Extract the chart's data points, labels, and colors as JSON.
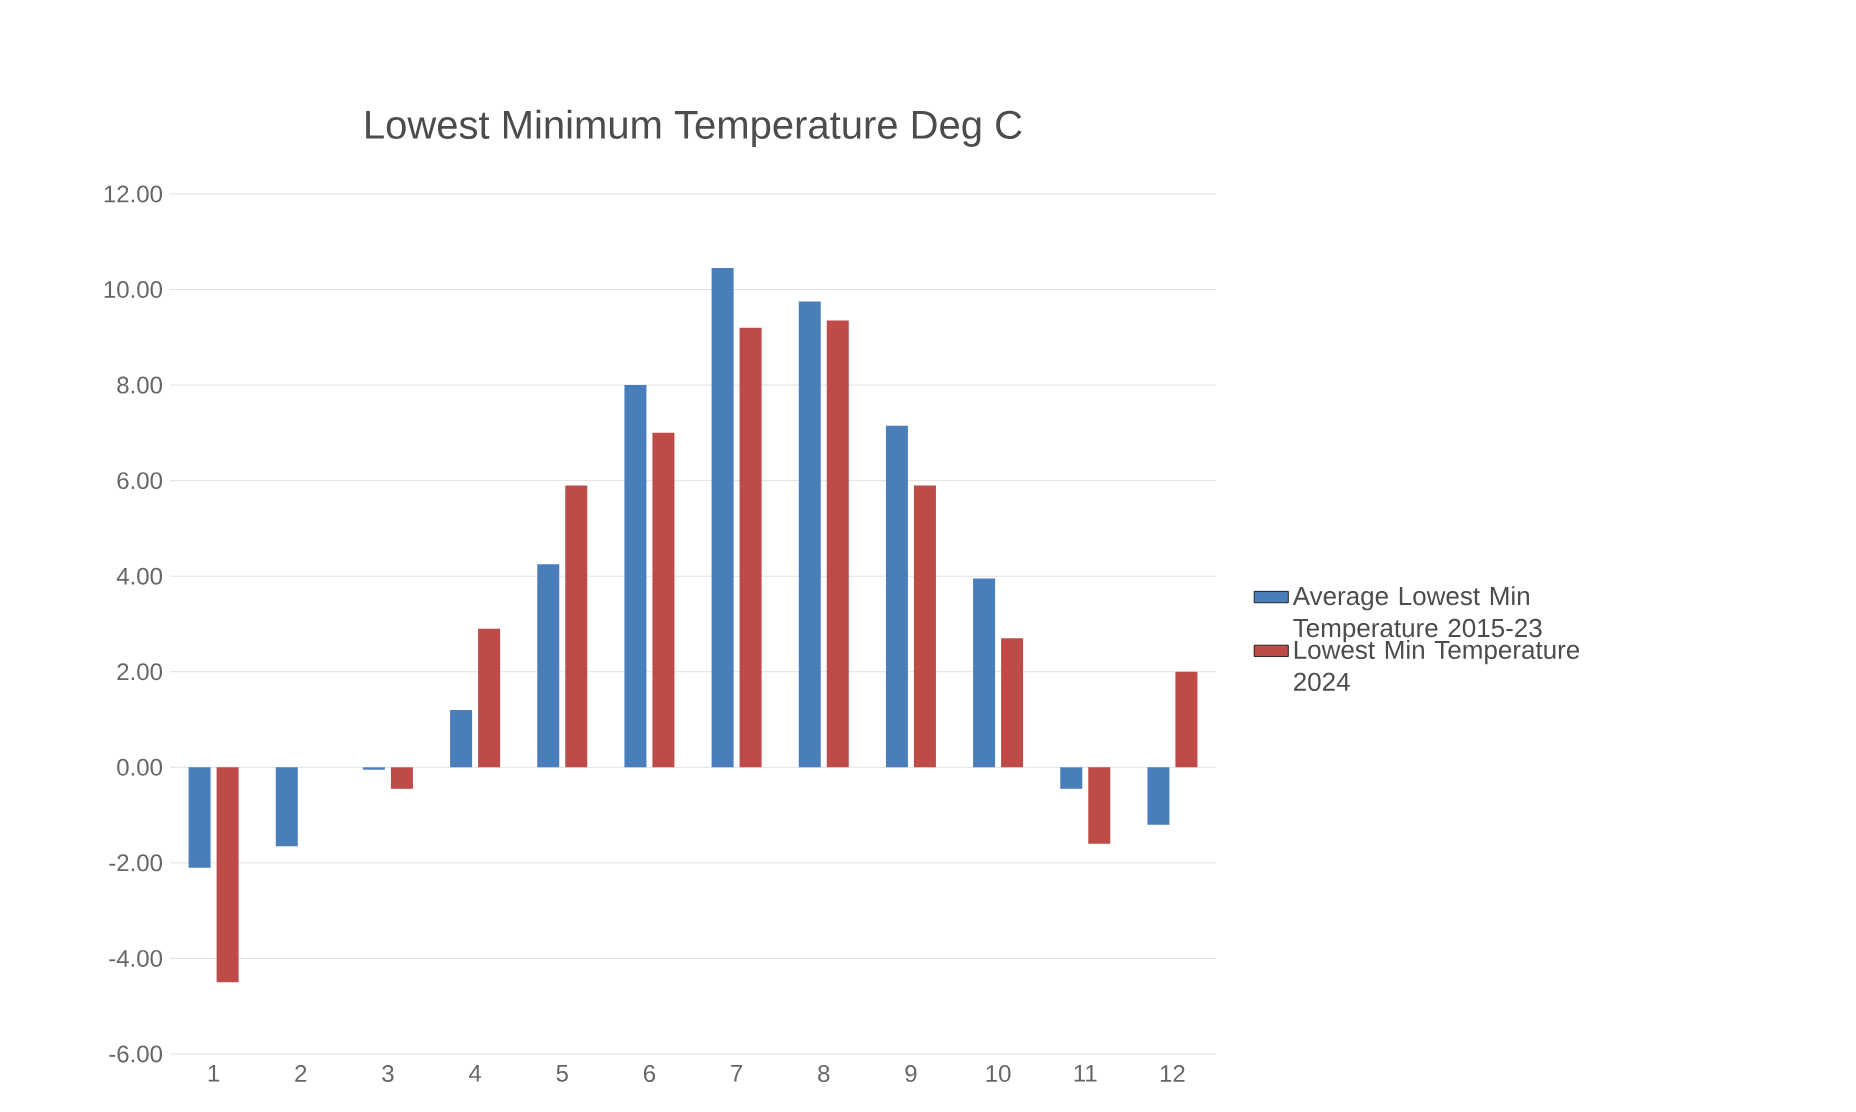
{
  "chart_data": {
    "type": "bar",
    "title": "Lowest Minimum Temperature  Deg C",
    "categories": [
      "1",
      "2",
      "3",
      "4",
      "5",
      "6",
      "7",
      "8",
      "9",
      "10",
      "11",
      "12"
    ],
    "series": [
      {
        "name": "Average Lowest Min Temperature 2015-23",
        "color": "#4a7ebb",
        "values": [
          -2.1,
          -1.65,
          -0.05,
          1.2,
          4.25,
          8.0,
          10.45,
          9.75,
          7.15,
          3.95,
          -0.45,
          -1.2
        ]
      },
      {
        "name": "Lowest Min Temperature 2024",
        "color": "#be4b48",
        "values": [
          -4.5,
          0,
          -0.45,
          2.9,
          5.9,
          7.0,
          9.2,
          9.35,
          5.9,
          2.7,
          -1.6,
          2.0
        ]
      }
    ],
    "ylim": [
      -6,
      12
    ],
    "yticks": [
      {
        "value": -6,
        "label": "-6.00"
      },
      {
        "value": -4,
        "label": "-4.00"
      },
      {
        "value": -2,
        "label": "-2.00"
      },
      {
        "value": 0,
        "label": "0.00"
      },
      {
        "value": 2,
        "label": "2.00"
      },
      {
        "value": 4,
        "label": "4.00"
      },
      {
        "value": 6,
        "label": "6.00"
      },
      {
        "value": 8,
        "label": "8.00"
      },
      {
        "value": 10,
        "label": "10.00"
      },
      {
        "value": 12,
        "label": "12.00"
      }
    ],
    "grid": "y",
    "legend": "right"
  }
}
